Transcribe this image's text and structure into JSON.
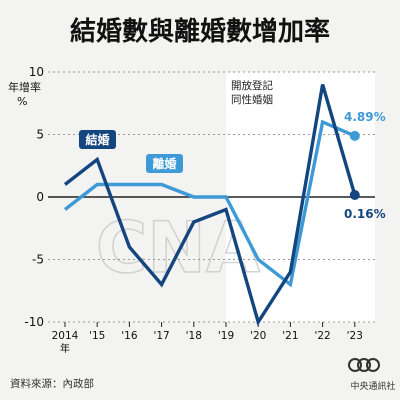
{
  "title": "結婚數與離婚數增加率",
  "source_note": "資料來源：內政部",
  "logo": {
    "mark": "CNA",
    "name": "中央通訊社"
  },
  "watermark": "CNA",
  "colors": {
    "background": "#f3f3f1",
    "shaded_region": "#ffffff",
    "marriage": "#13457e",
    "divorce": "#3d9ad6"
  },
  "chart_data": {
    "type": "line",
    "ylabel": "年增率\n%",
    "ylim": [
      -10,
      10
    ],
    "yticks": [
      10,
      5,
      0,
      -5,
      -10
    ],
    "x": [
      "2014",
      "'15",
      "'16",
      "'17",
      "'18",
      "'19",
      "'20",
      "'21",
      "'22",
      "'23"
    ],
    "x_suffix": "年",
    "grid": "horizontal dotted",
    "series": [
      {
        "name": "結婚",
        "color": "#13457e",
        "values": [
          1,
          3,
          -4,
          -7,
          -2,
          -1,
          -10,
          -6,
          9,
          0.16
        ],
        "end_label": "0.16%"
      },
      {
        "name": "離婚",
        "color": "#3d9ad6",
        "values": [
          -1,
          1,
          1,
          1,
          0,
          0,
          -5,
          -7,
          6,
          4.89
        ],
        "end_label": "4.89%"
      }
    ],
    "annotation": {
      "text": "開放登記\n同性婚姻",
      "from_index": 5
    }
  }
}
